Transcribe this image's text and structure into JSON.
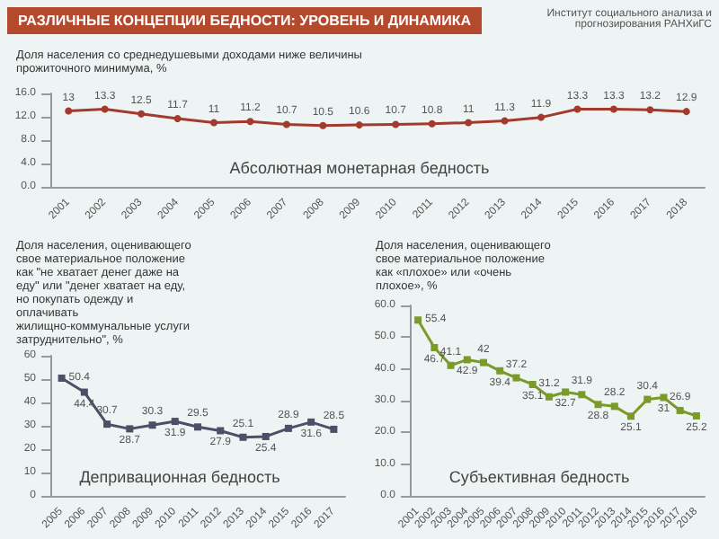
{
  "chart_data": [
    {
      "type": "line",
      "title": "Доля населения со среднедушевыми доходами ниже величины прожиточного минимума, %",
      "annotations": [
        "РАЗЛИЧНЫЕ КОНЦЕПЦИИ БЕДНОСТИ: УРОВЕНЬ И ДИНАМИКА",
        "Институт социального анализа и прогнозирования РАНХиГС",
        "Абсолютная монетарная бедность"
      ],
      "categories": [
        "2001",
        "2002",
        "2003",
        "2004",
        "2005",
        "2006",
        "2007",
        "2008",
        "2009",
        "2010",
        "2011",
        "2012",
        "2013",
        "2014",
        "2015",
        "2016",
        "2017",
        "2018"
      ],
      "series": [
        {
          "color": "#a33a2e",
          "values": [
            13.0,
            13.3,
            12.5,
            11.7,
            11.0,
            11.2,
            10.7,
            10.5,
            10.6,
            10.7,
            10.8,
            11.0,
            11.3,
            11.9,
            13.3,
            13.3,
            13.2,
            12.9
          ]
        }
      ],
      "ylim": [
        0,
        16
      ],
      "yticks": [
        {
          "value": 0,
          "label": "0.0"
        },
        {
          "value": 4,
          "label": "4.0"
        },
        {
          "value": 8,
          "label": "8.0"
        },
        {
          "value": 12,
          "label": "12.0"
        },
        {
          "value": 16,
          "label": "16.0"
        }
      ],
      "marker": "circle",
      "data_labels": true
    },
    {
      "type": "line",
      "title": "Доля населения, оценивающего свое материальное положение как \"не хватает денег даже на еду\" или \"денег хватает на еду, но покупать одежду и оплачивать жилищно-коммунальные услуги затруднительно\", %",
      "annotations": [
        "Депривационная бедность"
      ],
      "categories": [
        "2005",
        "2006",
        "2007",
        "2008",
        "2009",
        "2010",
        "2011",
        "2012",
        "2013",
        "2014",
        "2015",
        "2016",
        "2017"
      ],
      "series": [
        {
          "color": "#4a5068",
          "values": [
            50.4,
            44.4,
            30.7,
            28.7,
            30.3,
            31.9,
            29.5,
            27.9,
            25.1,
            25.4,
            28.9,
            31.6,
            28.5
          ]
        }
      ],
      "ylim": [
        0,
        60
      ],
      "yticks": [
        0,
        10,
        20,
        30,
        40,
        50,
        60
      ],
      "marker": "square",
      "data_labels": true
    },
    {
      "type": "line",
      "title": "Доля населения, оценивающего свое материальное положение как «плохое» или «очень плохое», %",
      "annotations": [
        "Субъективная бедность"
      ],
      "categories": [
        "2001",
        "2002",
        "2003",
        "2004",
        "2005",
        "2006",
        "2007",
        "2008",
        "2009",
        "2010",
        "2011",
        "2012",
        "2013",
        "2014",
        "2015",
        "2016",
        "2017",
        "2018"
      ],
      "series": [
        {
          "color": "#7a9a2a",
          "values": [
            55.4,
            46.7,
            41.1,
            42.9,
            42.0,
            39.4,
            37.2,
            35.1,
            31.2,
            32.7,
            31.9,
            28.8,
            28.2,
            25.1,
            30.4,
            31.0,
            26.9,
            25.2
          ]
        }
      ],
      "ylim": [
        0,
        60
      ],
      "yticks": [
        {
          "value": 0,
          "label": "0.0"
        },
        {
          "value": 10,
          "label": "10.0"
        },
        {
          "value": 20,
          "label": "20.0"
        },
        {
          "value": 30,
          "label": "30.0"
        },
        {
          "value": 40,
          "label": "40.0"
        },
        {
          "value": 50,
          "label": "50.0"
        },
        {
          "value": 60,
          "label": "60.0"
        }
      ],
      "marker": "square",
      "data_labels": true
    }
  ]
}
